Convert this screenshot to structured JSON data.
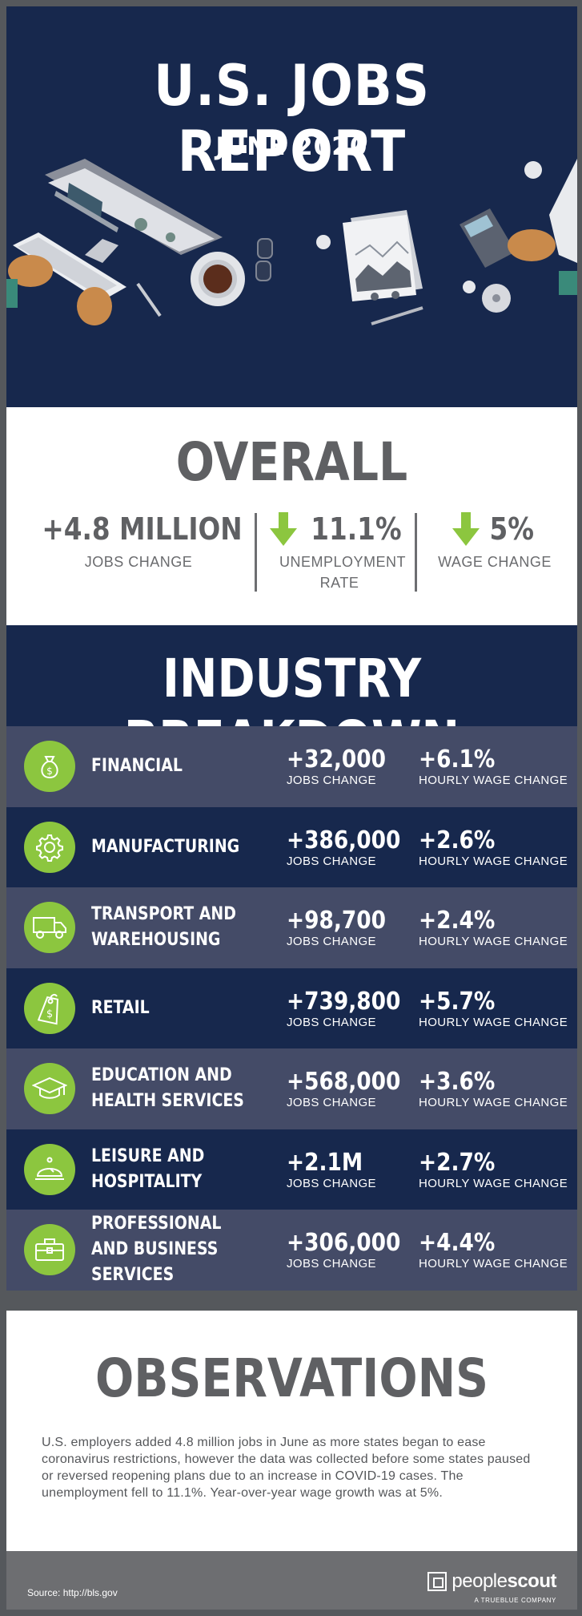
{
  "hero": {
    "title": "U.S. JOBS REPORT",
    "subtitle": "JUNE 2020"
  },
  "overall": {
    "title": "OVERALL",
    "stats": [
      {
        "value": "+4.8 MILLION",
        "label": "JOBS CHANGE",
        "icon": "briefcase-icon"
      },
      {
        "value": "11.1%",
        "label": "UNEMPLOYMENT RATE",
        "icon": "arrow-down-icon"
      },
      {
        "value": "5%",
        "label": "WAGE CHANGE",
        "icon": "arrow-down-icon"
      }
    ]
  },
  "industry": {
    "title": "INDUSTRY BREAKDOWN",
    "jobs_label": "JOBS CHANGE",
    "wage_label": "HOURLY WAGE CHANGE",
    "rows": [
      {
        "name": "FINANCIAL",
        "jobs": "+32,000",
        "wage": "+6.1%",
        "icon": "money-bag-icon"
      },
      {
        "name": "MANUFACTURING",
        "jobs": "+386,000",
        "wage": "+2.6%",
        "icon": "gear-icon"
      },
      {
        "name": "TRANSPORT AND WAREHOUSING",
        "jobs": "+98,700",
        "wage": "+2.4%",
        "icon": "truck-icon"
      },
      {
        "name": "RETAIL",
        "jobs": "+739,800",
        "wage": "+5.7%",
        "icon": "price-tag-icon"
      },
      {
        "name": "EDUCATION AND HEALTH SERVICES",
        "jobs": "+568,000",
        "wage": "+3.6%",
        "icon": "graduation-cap-icon"
      },
      {
        "name": "LEISURE AND HOSPITALITY",
        "jobs": "+2.1M",
        "wage": "+2.7%",
        "icon": "service-bell-icon"
      },
      {
        "name": "PROFESSIONAL AND BUSINESS SERVICES",
        "jobs": "+306,000",
        "wage": "+4.4%",
        "icon": "toolbox-icon"
      }
    ]
  },
  "observations": {
    "title": "OBSERVATIONS",
    "text": "U.S. employers added 4.8 million jobs in June as more states began to ease coronavirus restrictions, however the data was collected before some states paused or reversed reopening plans due to an increase in COVID-19 cases. The unemployment fell to 11.1%. Year-over-year wage growth was at 5%."
  },
  "footer": {
    "source": "Source: http://bls.gov",
    "brand_a": "people",
    "brand_b": "scout",
    "tagline": "A TRUEBLUE COMPANY"
  },
  "colors": {
    "navy": "#17284d",
    "slate": "#444b67",
    "green": "#8cc63f",
    "gray": "#5f6063"
  }
}
